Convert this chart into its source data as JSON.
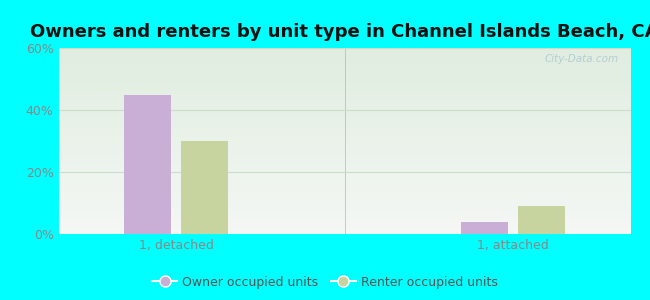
{
  "title": "Owners and renters by unit type in Channel Islands Beach, CA",
  "categories": [
    "1, detached",
    "1, attached"
  ],
  "owner_values": [
    45,
    4
  ],
  "renter_values": [
    30,
    9
  ],
  "owner_color": "#c9aed6",
  "renter_color": "#c8d4a0",
  "ylim": [
    0,
    60
  ],
  "yticks": [
    0,
    20,
    40,
    60
  ],
  "ytick_labels": [
    "0%",
    "20%",
    "40%",
    "60%"
  ],
  "background_outer": "#00ffff",
  "bar_width": 0.28,
  "group_positions": [
    1.0,
    3.0
  ],
  "legend_owner": "Owner occupied units",
  "legend_renter": "Renter occupied units",
  "watermark": "City-Data.com",
  "title_fontsize": 13,
  "tick_color": "#888888",
  "tick_fontsize": 9,
  "grid_color": "#ccddcc",
  "separator_color": "#aaaaaa"
}
